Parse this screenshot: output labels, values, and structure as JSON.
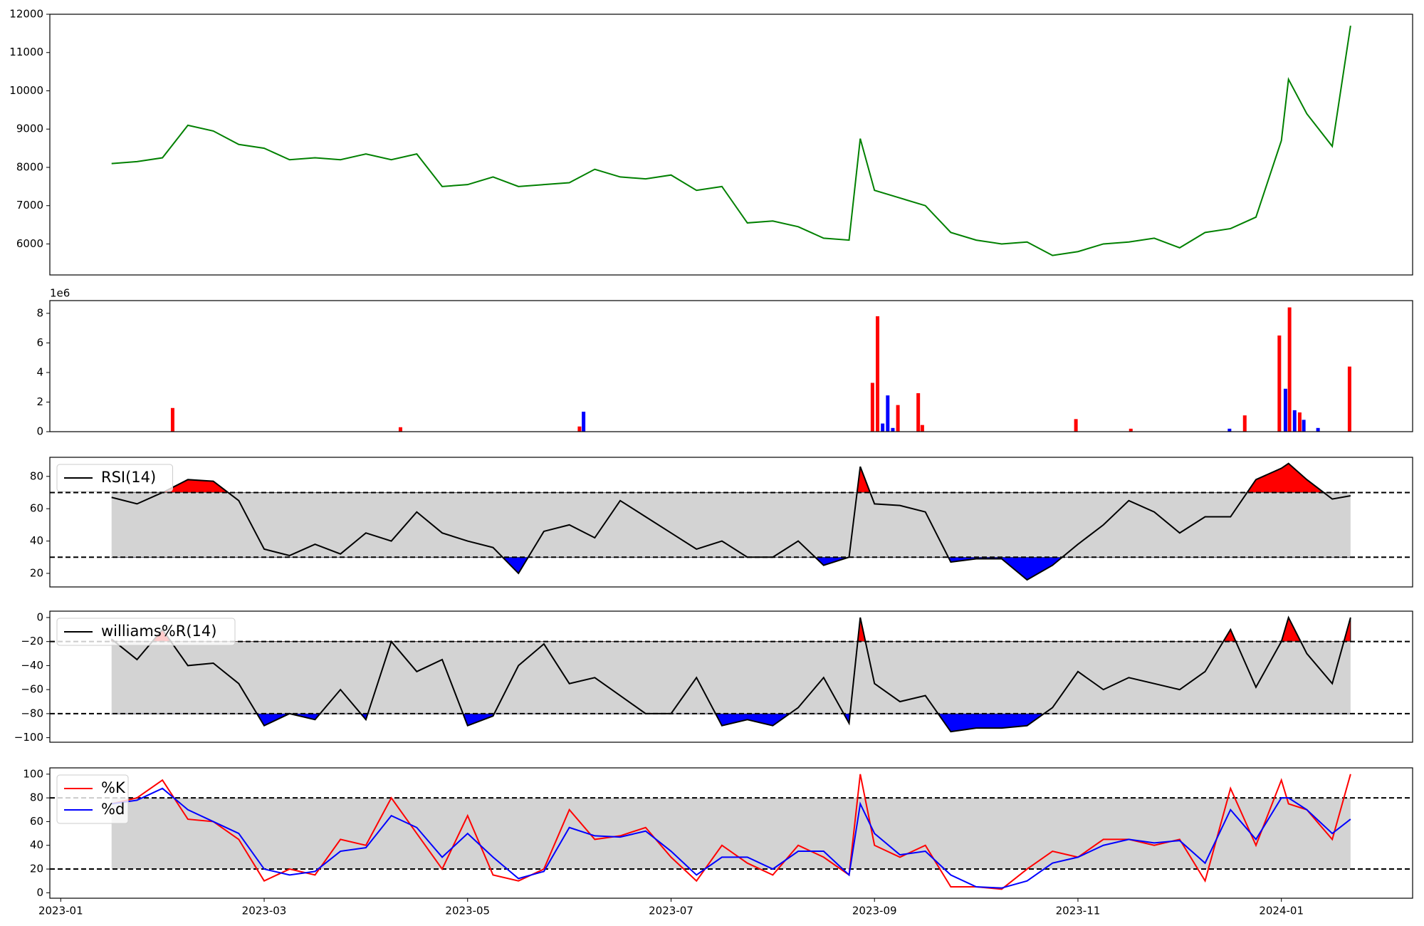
{
  "chart_data": [
    {
      "type": "line",
      "xlim": [
        -0.107,
        13.29
      ],
      "ylim": [
        5190,
        12000
      ],
      "yticks": [
        6000,
        7000,
        8000,
        9000,
        10000,
        11000,
        12000
      ],
      "x": [
        0.5,
        0.75,
        1,
        1.25,
        1.5,
        1.75,
        2,
        2.25,
        2.5,
        2.75,
        3,
        3.25,
        3.5,
        3.75,
        4,
        4.25,
        4.5,
        4.75,
        5,
        5.25,
        5.5,
        5.75,
        6,
        6.25,
        6.5,
        6.75,
        7,
        7.25,
        7.5,
        7.75,
        7.86,
        8,
        8.25,
        8.5,
        8.75,
        9,
        9.25,
        9.5,
        9.75,
        10,
        10.25,
        10.5,
        10.75,
        11,
        11.25,
        11.5,
        11.75,
        12,
        12.07,
        12.25,
        12.5,
        12.68
      ],
      "series": [
        {
          "color": "#008000",
          "values": [
            8100,
            8150,
            8250,
            9100,
            8950,
            8600,
            8500,
            8200,
            8250,
            8200,
            8350,
            8200,
            8350,
            7500,
            7550,
            7750,
            7500,
            7550,
            7600,
            7950,
            7750,
            7700,
            7800,
            7400,
            7500,
            6550,
            6600,
            6450,
            6150,
            6100,
            8750,
            7400,
            7200,
            7000,
            6300,
            6100,
            6000,
            6050,
            5700,
            5800,
            6000,
            6050,
            6150,
            5900,
            6300,
            6400,
            6700,
            8700,
            10300,
            9400,
            8550,
            11700
          ]
        }
      ]
    },
    {
      "type": "bar",
      "xlim": [
        -0.107,
        13.29
      ],
      "ylim": [
        0,
        8.86
      ],
      "yticks": [
        0,
        2,
        4,
        6,
        8
      ],
      "offset_label": "1e6",
      "series": [
        {
          "color": "#ff0000",
          "x": [
            1.1,
            3.34,
            5.1,
            7.98,
            8.03,
            8.23,
            8.43,
            8.47,
            9.98,
            10.52,
            11.64,
            11.98,
            12.08,
            12.18,
            12.67
          ],
          "values": [
            1.6,
            0.3,
            0.35,
            3.3,
            7.8,
            1.8,
            2.6,
            0.45,
            0.85,
            0.2,
            1.1,
            6.5,
            8.4,
            1.3,
            4.4
          ]
        },
        {
          "color": "#0000ff",
          "x": [
            5.14,
            8.08,
            8.13,
            8.18,
            11.49,
            12.04,
            12.13,
            12.22,
            12.36
          ],
          "values": [
            1.35,
            0.55,
            2.45,
            0.25,
            0.2,
            2.9,
            1.45,
            0.8,
            0.25
          ]
        }
      ]
    },
    {
      "type": "line",
      "xlim": [
        -0.107,
        13.29
      ],
      "ylim": [
        11.6,
        91.8
      ],
      "yticks": [
        20,
        40,
        60,
        80
      ],
      "hlines": [
        30,
        70
      ],
      "band_color": "#d3d3d3",
      "extreme_colors": [
        "#ff0000",
        "#0000ff"
      ],
      "legend": "upper left",
      "x": [
        0.5,
        0.75,
        1,
        1.25,
        1.5,
        1.75,
        2,
        2.25,
        2.5,
        2.75,
        3,
        3.25,
        3.5,
        3.75,
        4,
        4.25,
        4.5,
        4.75,
        5,
        5.25,
        5.5,
        5.75,
        6,
        6.25,
        6.5,
        6.75,
        7,
        7.25,
        7.5,
        7.75,
        7.86,
        8,
        8.25,
        8.5,
        8.75,
        9,
        9.25,
        9.5,
        9.75,
        10,
        10.25,
        10.5,
        10.75,
        11,
        11.25,
        11.5,
        11.75,
        12,
        12.07,
        12.25,
        12.5,
        12.68
      ],
      "series": [
        {
          "name": "RSI(14)",
          "color": "#000000",
          "values": [
            67,
            63,
            70,
            78,
            77,
            65,
            35,
            31,
            38,
            32,
            45,
            40,
            58,
            45,
            40,
            36,
            20,
            46,
            50,
            42,
            65,
            55,
            45,
            35,
            40,
            30,
            30,
            40,
            25,
            30,
            86,
            63,
            62,
            58,
            27,
            29,
            29,
            16,
            25,
            38,
            50,
            65,
            58,
            45,
            55,
            55,
            78,
            85,
            88,
            78,
            66,
            68
          ]
        }
      ]
    },
    {
      "type": "line",
      "xlim": [
        -0.107,
        13.29
      ],
      "ylim": [
        -103.8,
        5.3
      ],
      "yticks": [
        {
          "value": -100,
          "label": "−100"
        },
        {
          "value": -80,
          "label": "−80"
        },
        {
          "value": -60,
          "label": "−60"
        },
        {
          "value": -40,
          "label": "−40"
        },
        {
          "value": -20,
          "label": "−20"
        },
        0
      ],
      "hlines": [
        -80,
        -20
      ],
      "band_color": "#d3d3d3",
      "extreme_colors": [
        "#ff0000",
        "#0000ff"
      ],
      "legend": "upper left",
      "x": [
        0.5,
        0.75,
        1,
        1.25,
        1.5,
        1.75,
        2,
        2.25,
        2.5,
        2.75,
        3,
        3.25,
        3.5,
        3.75,
        4,
        4.25,
        4.5,
        4.75,
        5,
        5.25,
        5.5,
        5.75,
        6,
        6.25,
        6.5,
        6.75,
        7,
        7.25,
        7.5,
        7.75,
        7.86,
        8,
        8.25,
        8.5,
        8.75,
        9,
        9.25,
        9.5,
        9.75,
        10,
        10.25,
        10.5,
        10.75,
        11,
        11.25,
        11.5,
        11.75,
        12,
        12.07,
        12.25,
        12.5,
        12.68
      ],
      "series": [
        {
          "name": "williams%R(14)",
          "color": "#000000",
          "values": [
            -18,
            -35,
            -10,
            -40,
            -38,
            -55,
            -90,
            -80,
            -85,
            -60,
            -85,
            -20,
            -45,
            -35,
            -90,
            -82,
            -40,
            -22,
            -55,
            -50,
            -65,
            -80,
            -80,
            -50,
            -90,
            -85,
            -90,
            -75,
            -50,
            -88,
            0,
            -55,
            -70,
            -65,
            -95,
            -92,
            -92,
            -90,
            -75,
            -45,
            -60,
            -50,
            -55,
            -60,
            -45,
            -10,
            -58,
            -20,
            0,
            -30,
            -55,
            0
          ]
        }
      ]
    },
    {
      "type": "line",
      "xlim": [
        -0.107,
        13.29
      ],
      "ylim": [
        -4.6,
        105.3
      ],
      "yticks": [
        0,
        20,
        40,
        60,
        80,
        100
      ],
      "hlines": [
        20,
        80
      ],
      "band_color": "#d3d3d3",
      "legend": "upper left",
      "xticks": [
        {
          "value": 0,
          "label": "2023-01"
        },
        {
          "value": 2,
          "label": "2023-03"
        },
        {
          "value": 4,
          "label": "2023-05"
        },
        {
          "value": 6,
          "label": "2023-07"
        },
        {
          "value": 8,
          "label": "2023-09"
        },
        {
          "value": 10,
          "label": "2023-11"
        },
        {
          "value": 12,
          "label": "2024-01"
        }
      ],
      "x": [
        0.5,
        0.75,
        1,
        1.25,
        1.5,
        1.75,
        2,
        2.25,
        2.5,
        2.75,
        3,
        3.25,
        3.5,
        3.75,
        4,
        4.25,
        4.5,
        4.75,
        5,
        5.25,
        5.5,
        5.75,
        6,
        6.25,
        6.5,
        6.75,
        7,
        7.25,
        7.5,
        7.75,
        7.86,
        8,
        8.25,
        8.5,
        8.75,
        9,
        9.25,
        9.5,
        9.75,
        10,
        10.25,
        10.5,
        10.75,
        11,
        11.25,
        11.5,
        11.75,
        12,
        12.07,
        12.25,
        12.5,
        12.68
      ],
      "series": [
        {
          "name": "%K",
          "color": "#ff0000",
          "values": [
            75,
            80,
            95,
            62,
            60,
            45,
            10,
            20,
            15,
            45,
            40,
            80,
            50,
            20,
            65,
            15,
            10,
            20,
            70,
            45,
            48,
            55,
            30,
            10,
            40,
            25,
            15,
            40,
            30,
            15,
            100,
            40,
            30,
            40,
            5,
            5,
            3,
            20,
            35,
            30,
            45,
            45,
            40,
            45,
            10,
            88,
            40,
            95,
            75,
            70,
            45,
            100
          ]
        },
        {
          "name": "%d",
          "color": "#0000ff",
          "values": [
            75,
            78,
            88,
            70,
            60,
            50,
            20,
            15,
            18,
            35,
            38,
            65,
            55,
            30,
            50,
            30,
            12,
            18,
            55,
            48,
            47,
            52,
            35,
            15,
            30,
            30,
            20,
            35,
            35,
            15,
            75,
            50,
            32,
            35,
            15,
            5,
            4,
            10,
            25,
            30,
            40,
            45,
            42,
            44,
            25,
            70,
            45,
            80,
            80,
            70,
            50,
            62
          ]
        }
      ]
    }
  ]
}
